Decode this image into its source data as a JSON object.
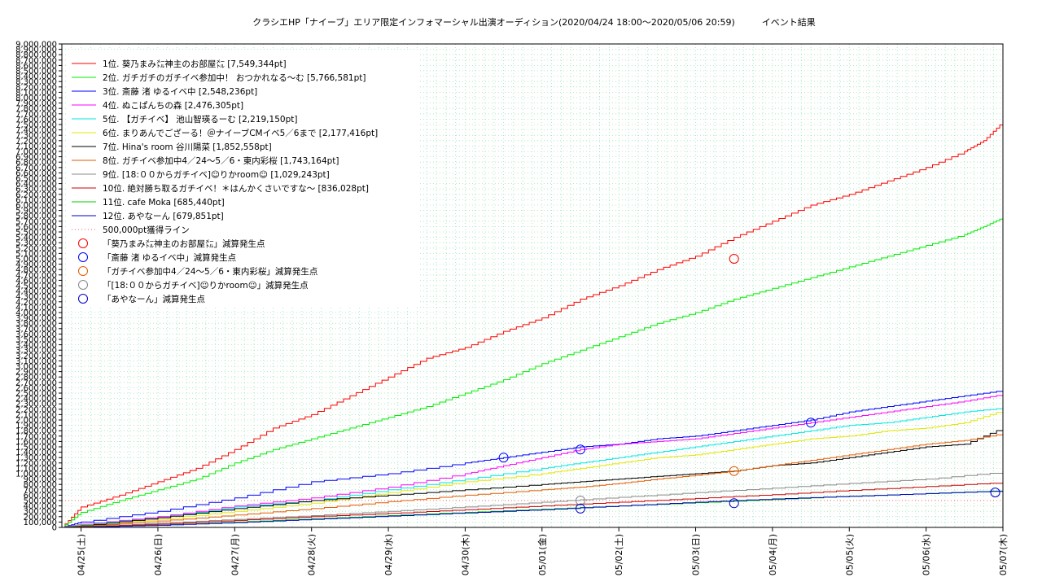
{
  "chart_data": {
    "type": "line",
    "title": "クラシエHP「ナイーブ」エリア限定インフォマーシャル出演オーディション(2020/04/24 18:00〜2020/05/06 20:59)　　　イベント結果",
    "xlabel": "",
    "ylabel": "",
    "x_ticks": [
      "04/25(土)",
      "04/26(日)",
      "04/27(月)",
      "04/28(火)",
      "04/29(水)",
      "04/30(木)",
      "05/01(金)",
      "05/02(土)",
      "05/03(日)",
      "05/04(月)",
      "05/05(火)",
      "05/06(水)",
      "05/07(木)"
    ],
    "y_ticks": [
      "0",
      "100,000",
      "200,000",
      "300,000",
      "400,000",
      "500,000",
      "600,000",
      "700,000",
      "800,000",
      "900,000",
      "1,000,000",
      "1,100,000",
      "1,200,000",
      "1,300,000",
      "1,400,000",
      "1,500,000",
      "1,600,000",
      "1,700,000",
      "1,800,000",
      "1,900,000",
      "2,000,000",
      "2,100,000",
      "2,200,000",
      "2,300,000",
      "2,400,000",
      "2,500,000",
      "2,600,000",
      "2,700,000",
      "2,800,000",
      "2,900,000",
      "3,000,000",
      "3,100,000",
      "3,200,000",
      "3,300,000",
      "3,400,000",
      "3,500,000",
      "3,600,000",
      "3,700,000",
      "3,800,000",
      "3,900,000",
      "4,000,000",
      "4,100,000",
      "4,200,000",
      "4,300,000",
      "4,400,000",
      "4,500,000",
      "4,600,000",
      "4,700,000",
      "4,800,000",
      "4,900,000",
      "5,000,000",
      "5,100,000",
      "5,200,000",
      "5,300,000",
      "5,400,000",
      "5,500,000",
      "5,600,000",
      "5,700,000",
      "5,800,000",
      "5,900,000",
      "6,000,000",
      "6,100,000",
      "6,200,000",
      "6,300,000",
      "6,400,000",
      "6,500,000",
      "6,600,000",
      "6,700,000",
      "6,800,000",
      "6,900,000",
      "7,000,000",
      "7,100,000",
      "7,200,000",
      "7,300,000",
      "7,400,000",
      "7,500,000",
      "7,600,000",
      "7,700,000",
      "7,800,000",
      "7,900,000",
      "8,000,000",
      "8,100,000",
      "8,200,000",
      "8,300,000",
      "8,400,000",
      "8,500,000",
      "8,600,000",
      "8,700,000",
      "8,800,000",
      "8,900,000",
      "9,000,000"
    ],
    "xlim": [
      -0.25,
      12.0
    ],
    "ylim": [
      0,
      9000000
    ],
    "grid": true,
    "legend_position": "top-left",
    "series": [
      {
        "name": "1位. 葵乃まみ㍍神主のお部屋㍍ [7,549,344pt]",
        "color": "#ff0000",
        "x": [
          -0.25,
          0.0,
          0.5,
          1.0,
          1.5,
          2.0,
          2.5,
          3.0,
          3.5,
          4.0,
          4.5,
          5.0,
          5.5,
          6.0,
          6.5,
          7.0,
          7.5,
          8.0,
          8.5,
          9.0,
          9.5,
          10.0,
          10.5,
          11.0,
          11.5,
          11.75,
          12.0
        ],
        "y": [
          0,
          380000,
          600000,
          850000,
          1100000,
          1450000,
          1850000,
          2100000,
          2450000,
          2800000,
          3150000,
          3350000,
          3650000,
          3900000,
          4250000,
          4500000,
          4800000,
          5050000,
          5400000,
          5700000,
          6000000,
          6200000,
          6450000,
          6700000,
          7000000,
          7200000,
          7549344
        ]
      },
      {
        "name": "2位. ガチガチのガチイベ参加中！ おつかれなる〜む [5,766,581pt]",
        "color": "#00ee00",
        "x": [
          -0.25,
          0.0,
          0.5,
          1.0,
          1.5,
          2.0,
          2.5,
          3.0,
          3.5,
          4.0,
          4.5,
          5.0,
          5.5,
          6.0,
          6.5,
          7.0,
          7.5,
          8.0,
          8.5,
          9.0,
          9.5,
          10.0,
          10.5,
          11.0,
          11.5,
          11.75,
          12.0
        ],
        "y": [
          0,
          280000,
          500000,
          700000,
          900000,
          1200000,
          1450000,
          1650000,
          1850000,
          2050000,
          2250000,
          2500000,
          2750000,
          3050000,
          3300000,
          3550000,
          3800000,
          4000000,
          4250000,
          4450000,
          4650000,
          4850000,
          5050000,
          5250000,
          5450000,
          5600000,
          5766581
        ]
      },
      {
        "name": "3位. 斎藤 渚 ゆるイベ中 [2,548,236pt]",
        "color": "#0000ff",
        "x": [
          -0.25,
          0.0,
          1.0,
          2.0,
          3.0,
          4.0,
          5.0,
          5.5,
          6.0,
          6.5,
          7.0,
          7.5,
          8.0,
          8.5,
          9.0,
          9.5,
          10.0,
          10.5,
          11.0,
          11.5,
          12.0
        ],
        "y": [
          0,
          100000,
          300000,
          550000,
          850000,
          1000000,
          1200000,
          1300000,
          1400000,
          1500000,
          1550000,
          1650000,
          1700000,
          1800000,
          1900000,
          2000000,
          2150000,
          2250000,
          2350000,
          2450000,
          2548236
        ]
      },
      {
        "name": "4位. ぬこぱんちの森 [2,476,305pt]",
        "color": "#ff00ff",
        "x": [
          -0.25,
          0.0,
          1.0,
          2.0,
          3.0,
          4.0,
          5.0,
          5.5,
          6.0,
          6.5,
          7.0,
          7.5,
          8.0,
          8.5,
          9.0,
          9.5,
          10.0,
          10.5,
          11.0,
          11.5,
          12.0
        ],
        "y": [
          0,
          60000,
          200000,
          400000,
          550000,
          750000,
          1000000,
          1150000,
          1300000,
          1450000,
          1550000,
          1600000,
          1650000,
          1750000,
          1850000,
          1950000,
          2050000,
          2150000,
          2250000,
          2350000,
          2476305
        ]
      },
      {
        "name": "5位. 【ガチイベ】 池山智瑛るーむ [2,219,150pt]",
        "color": "#00e5e5",
        "x": [
          -0.25,
          0.0,
          1.0,
          2.0,
          3.0,
          4.0,
          5.0,
          6.0,
          6.5,
          7.0,
          7.5,
          8.0,
          8.5,
          9.0,
          9.5,
          10.0,
          10.5,
          11.0,
          11.5,
          12.0
        ],
        "y": [
          0,
          50000,
          180000,
          380000,
          500000,
          700000,
          900000,
          1100000,
          1200000,
          1300000,
          1400000,
          1500000,
          1600000,
          1700000,
          1800000,
          1900000,
          1950000,
          2050000,
          2150000,
          2219150
        ]
      },
      {
        "name": "6位. まりあんでござーる！＠ナイーブCMイベ5／6まで [2,177,416pt]",
        "color": "#e5e500",
        "x": [
          -0.25,
          0.0,
          1.0,
          2.0,
          3.0,
          4.0,
          5.0,
          6.0,
          6.5,
          7.0,
          7.5,
          8.0,
          8.5,
          9.0,
          9.5,
          10.0,
          10.5,
          11.0,
          11.5,
          12.0
        ],
        "y": [
          0,
          40000,
          150000,
          300000,
          450000,
          650000,
          850000,
          1000000,
          1100000,
          1200000,
          1300000,
          1350000,
          1450000,
          1550000,
          1650000,
          1700000,
          1800000,
          1850000,
          1950000,
          2177416
        ]
      },
      {
        "name": "7位. Hina's room 谷川陽菜 [1,852,558pt]",
        "color": "#000000",
        "x": [
          -0.25,
          0.0,
          1.0,
          2.0,
          3.0,
          4.0,
          5.0,
          6.0,
          6.5,
          7.0,
          7.5,
          8.0,
          8.5,
          9.0,
          9.5,
          10.0,
          10.5,
          11.0,
          11.5,
          12.0
        ],
        "y": [
          0,
          30000,
          180000,
          350000,
          500000,
          600000,
          700000,
          800000,
          850000,
          900000,
          950000,
          1000000,
          1050000,
          1150000,
          1200000,
          1300000,
          1400000,
          1500000,
          1550000,
          1852558
        ]
      },
      {
        "name": "8位. ガチイベ参加中4／24〜5／6・東内彩桜 [1,743,164pt]",
        "color": "#e55a00",
        "x": [
          -0.25,
          0.0,
          1.0,
          2.0,
          3.0,
          4.0,
          5.0,
          6.0,
          6.5,
          7.0,
          7.5,
          8.0,
          8.5,
          9.0,
          9.5,
          10.0,
          10.5,
          11.0,
          11.5,
          12.0
        ],
        "y": [
          0,
          20000,
          120000,
          230000,
          350000,
          480000,
          600000,
          700000,
          750000,
          820000,
          900000,
          970000,
          1050000,
          1150000,
          1250000,
          1350000,
          1450000,
          1550000,
          1620000,
          1743164
        ]
      },
      {
        "name": "9位. [18:００からガチイベ]☺りかroom☺ [1,029,243pt]",
        "color": "#888888",
        "x": [
          -0.25,
          0.0,
          1.0,
          2.0,
          3.0,
          4.0,
          5.0,
          6.0,
          7.0,
          8.0,
          9.0,
          10.0,
          11.0,
          12.0
        ],
        "y": [
          0,
          10000,
          80000,
          150000,
          220000,
          300000,
          380000,
          470000,
          560000,
          650000,
          730000,
          820000,
          900000,
          1029243
        ]
      },
      {
        "name": "10位. 絶対勝ち取るガチイベ！＊はんかくさいですな〜 [836,028pt]",
        "color": "#cc0000",
        "x": [
          -0.25,
          0.0,
          1.0,
          2.0,
          3.0,
          4.0,
          5.0,
          6.0,
          7.0,
          8.0,
          9.0,
          10.0,
          11.0,
          12.0
        ],
        "y": [
          0,
          10000,
          60000,
          130000,
          200000,
          260000,
          330000,
          400000,
          470000,
          540000,
          610000,
          690000,
          760000,
          836028
        ]
      },
      {
        "name": "11位. cafe Moka [685,440pt]",
        "color": "#00cc00",
        "x": [
          -0.25,
          0.0,
          1.0,
          2.0,
          3.0,
          4.0,
          5.0,
          6.0,
          7.0,
          8.0,
          9.0,
          10.0,
          11.0,
          12.0
        ],
        "y": [
          0,
          5000,
          40000,
          100000,
          160000,
          220000,
          280000,
          340000,
          400000,
          460000,
          520000,
          580000,
          630000,
          685440
        ]
      },
      {
        "name": "12位. あやなーん [679,851pt]",
        "color": "#0000cc",
        "x": [
          -0.25,
          0.0,
          1.0,
          2.0,
          3.0,
          4.0,
          5.0,
          6.0,
          7.0,
          8.0,
          9.0,
          10.0,
          11.0,
          12.0
        ],
        "y": [
          0,
          5000,
          40000,
          90000,
          150000,
          210000,
          270000,
          330000,
          400000,
          470000,
          530000,
          580000,
          630000,
          679851
        ]
      }
    ],
    "reference_line": {
      "name": "500,000pt獲得ライン",
      "value": 500000,
      "color": "#ff6666"
    },
    "markers": [
      {
        "name": "「葵乃まみ㍍神主のお部屋㍍」減算発生点",
        "color": "#ff0000",
        "x": [
          8.5
        ],
        "y": [
          5000000
        ]
      },
      {
        "name": "「斎藤 渚 ゆるイベ中」減算発生点",
        "color": "#0000ff",
        "x": [
          5.5,
          6.5,
          9.5
        ],
        "y": [
          1300000,
          1450000,
          1950000
        ]
      },
      {
        "name": "「ガチイベ参加中4／24〜5／6・東内彩桜」減算発生点",
        "color": "#e55a00",
        "x": [
          8.5
        ],
        "y": [
          1050000
        ]
      },
      {
        "name": "「[18:００からガチイベ]☺りかroom☺」減算発生点",
        "color": "#888888",
        "x": [
          6.5
        ],
        "y": [
          500000
        ]
      },
      {
        "name": "「あやなーん」減算発生点",
        "color": "#0000cc",
        "x": [
          6.5,
          8.5,
          11.9
        ],
        "y": [
          350000,
          450000,
          650000
        ]
      }
    ]
  }
}
